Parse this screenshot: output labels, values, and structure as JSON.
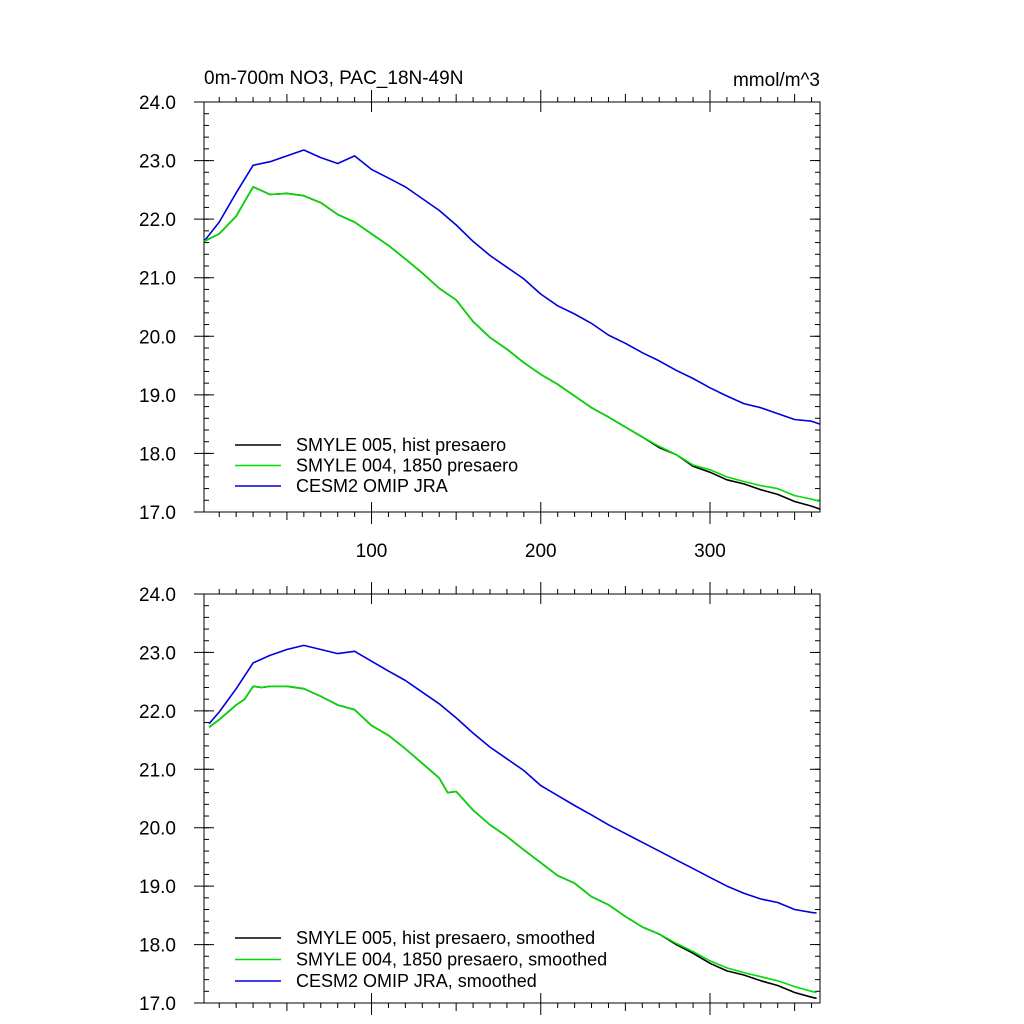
{
  "chart_data": [
    {
      "type": "line",
      "title": "0m-700m NO3, PAC_18N-49N",
      "units": "mmol/m^3",
      "xlim": [
        1,
        365
      ],
      "ylim": [
        17.0,
        24.0
      ],
      "xticks": [
        100,
        200,
        300
      ],
      "xtick_labels": [
        "100",
        "200",
        "300"
      ],
      "yticks": [
        17.0,
        18.0,
        19.0,
        20.0,
        21.0,
        22.0,
        23.0,
        24.0
      ],
      "ytick_labels": [
        "17.0",
        "18.0",
        "19.0",
        "20.0",
        "21.0",
        "22.0",
        "23.0",
        "24.0"
      ],
      "legend_position": "bottom-left",
      "series": [
        {
          "name": "SMYLE 005, hist presaero",
          "color": "#000000",
          "points": [
            [
              1,
              21.62
            ],
            [
              10,
              21.75
            ],
            [
              20,
              22.05
            ],
            [
              30,
              22.55
            ],
            [
              40,
              22.42
            ],
            [
              50,
              22.44
            ],
            [
              60,
              22.4
            ],
            [
              70,
              22.28
            ],
            [
              80,
              22.08
            ],
            [
              90,
              21.95
            ],
            [
              100,
              21.75
            ],
            [
              110,
              21.55
            ],
            [
              120,
              21.32
            ],
            [
              130,
              21.08
            ],
            [
              140,
              20.82
            ],
            [
              150,
              20.62
            ],
            [
              160,
              20.25
            ],
            [
              170,
              19.98
            ],
            [
              180,
              19.78
            ],
            [
              190,
              19.55
            ],
            [
              200,
              19.35
            ],
            [
              210,
              19.18
            ],
            [
              220,
              18.98
            ],
            [
              230,
              18.78
            ],
            [
              240,
              18.62
            ],
            [
              250,
              18.45
            ],
            [
              260,
              18.28
            ],
            [
              270,
              18.1
            ],
            [
              280,
              17.98
            ],
            [
              290,
              17.78
            ],
            [
              300,
              17.68
            ],
            [
              310,
              17.55
            ],
            [
              320,
              17.48
            ],
            [
              330,
              17.38
            ],
            [
              340,
              17.3
            ],
            [
              350,
              17.18
            ],
            [
              360,
              17.1
            ],
            [
              365,
              17.05
            ]
          ]
        },
        {
          "name": "SMYLE 004, 1850 presaero",
          "color": "#00dd00",
          "points": [
            [
              1,
              21.62
            ],
            [
              10,
              21.75
            ],
            [
              20,
              22.05
            ],
            [
              30,
              22.55
            ],
            [
              40,
              22.42
            ],
            [
              50,
              22.44
            ],
            [
              60,
              22.4
            ],
            [
              70,
              22.28
            ],
            [
              80,
              22.08
            ],
            [
              90,
              21.95
            ],
            [
              100,
              21.75
            ],
            [
              110,
              21.55
            ],
            [
              120,
              21.32
            ],
            [
              130,
              21.08
            ],
            [
              140,
              20.82
            ],
            [
              150,
              20.62
            ],
            [
              160,
              20.25
            ],
            [
              170,
              19.98
            ],
            [
              180,
              19.78
            ],
            [
              190,
              19.55
            ],
            [
              200,
              19.35
            ],
            [
              210,
              19.18
            ],
            [
              220,
              18.98
            ],
            [
              230,
              18.78
            ],
            [
              240,
              18.62
            ],
            [
              250,
              18.45
            ],
            [
              260,
              18.28
            ],
            [
              270,
              18.12
            ],
            [
              280,
              17.98
            ],
            [
              290,
              17.8
            ],
            [
              300,
              17.72
            ],
            [
              310,
              17.6
            ],
            [
              320,
              17.52
            ],
            [
              330,
              17.45
            ],
            [
              340,
              17.4
            ],
            [
              350,
              17.28
            ],
            [
              360,
              17.22
            ],
            [
              365,
              17.18
            ]
          ]
        },
        {
          "name": "CESM2 OMIP JRA",
          "color": "#0000dd",
          "points": [
            [
              1,
              21.62
            ],
            [
              10,
              21.95
            ],
            [
              20,
              22.45
            ],
            [
              30,
              22.92
            ],
            [
              40,
              22.98
            ],
            [
              50,
              23.08
            ],
            [
              60,
              23.18
            ],
            [
              70,
              23.05
            ],
            [
              80,
              22.95
            ],
            [
              90,
              23.08
            ],
            [
              100,
              22.85
            ],
            [
              110,
              22.7
            ],
            [
              120,
              22.55
            ],
            [
              130,
              22.35
            ],
            [
              140,
              22.15
            ],
            [
              150,
              21.9
            ],
            [
              160,
              21.62
            ],
            [
              170,
              21.38
            ],
            [
              180,
              21.18
            ],
            [
              190,
              20.98
            ],
            [
              200,
              20.72
            ],
            [
              210,
              20.52
            ],
            [
              220,
              20.38
            ],
            [
              230,
              20.22
            ],
            [
              240,
              20.02
            ],
            [
              250,
              19.88
            ],
            [
              260,
              19.72
            ],
            [
              270,
              19.58
            ],
            [
              280,
              19.42
            ],
            [
              290,
              19.28
            ],
            [
              300,
              19.12
            ],
            [
              310,
              18.98
            ],
            [
              320,
              18.85
            ],
            [
              330,
              18.78
            ],
            [
              340,
              18.68
            ],
            [
              350,
              18.58
            ],
            [
              360,
              18.55
            ],
            [
              365,
              18.5
            ]
          ]
        }
      ]
    },
    {
      "type": "line",
      "xlim": [
        1,
        365
      ],
      "ylim": [
        17.0,
        24.0
      ],
      "xticks": [
        100,
        200,
        300
      ],
      "yticks": [
        17.0,
        18.0,
        19.0,
        20.0,
        21.0,
        22.0,
        23.0,
        24.0
      ],
      "ytick_labels": [
        "17.0",
        "18.0",
        "19.0",
        "20.0",
        "21.0",
        "22.0",
        "23.0",
        "24.0"
      ],
      "legend_position": "bottom-left",
      "series": [
        {
          "name": "SMYLE 005, hist presaero, smoothed",
          "color": "#000000",
          "points": [
            [
              4,
              21.72
            ],
            [
              10,
              21.85
            ],
            [
              20,
              22.1
            ],
            [
              25,
              22.2
            ],
            [
              30,
              22.42
            ],
            [
              35,
              22.4
            ],
            [
              40,
              22.42
            ],
            [
              50,
              22.42
            ],
            [
              60,
              22.38
            ],
            [
              70,
              22.25
            ],
            [
              80,
              22.1
            ],
            [
              90,
              22.02
            ],
            [
              100,
              21.75
            ],
            [
              110,
              21.58
            ],
            [
              120,
              21.35
            ],
            [
              130,
              21.1
            ],
            [
              140,
              20.85
            ],
            [
              145,
              20.6
            ],
            [
              150,
              20.62
            ],
            [
              160,
              20.3
            ],
            [
              170,
              20.05
            ],
            [
              180,
              19.85
            ],
            [
              190,
              19.62
            ],
            [
              200,
              19.4
            ],
            [
              210,
              19.18
            ],
            [
              220,
              19.05
            ],
            [
              230,
              18.82
            ],
            [
              240,
              18.68
            ],
            [
              250,
              18.48
            ],
            [
              260,
              18.3
            ],
            [
              270,
              18.18
            ],
            [
              280,
              18.0
            ],
            [
              290,
              17.85
            ],
            [
              300,
              17.68
            ],
            [
              310,
              17.55
            ],
            [
              320,
              17.48
            ],
            [
              330,
              17.38
            ],
            [
              340,
              17.3
            ],
            [
              350,
              17.18
            ],
            [
              360,
              17.1
            ],
            [
              363,
              17.08
            ]
          ]
        },
        {
          "name": "SMYLE 004, 1850 presaero, smoothed",
          "color": "#00dd00",
          "points": [
            [
              4,
              21.72
            ],
            [
              10,
              21.85
            ],
            [
              20,
              22.1
            ],
            [
              25,
              22.2
            ],
            [
              30,
              22.42
            ],
            [
              35,
              22.4
            ],
            [
              40,
              22.42
            ],
            [
              50,
              22.42
            ],
            [
              60,
              22.38
            ],
            [
              70,
              22.25
            ],
            [
              80,
              22.1
            ],
            [
              90,
              22.02
            ],
            [
              100,
              21.75
            ],
            [
              110,
              21.58
            ],
            [
              120,
              21.35
            ],
            [
              130,
              21.1
            ],
            [
              140,
              20.85
            ],
            [
              145,
              20.6
            ],
            [
              150,
              20.62
            ],
            [
              160,
              20.3
            ],
            [
              170,
              20.05
            ],
            [
              180,
              19.85
            ],
            [
              190,
              19.62
            ],
            [
              200,
              19.4
            ],
            [
              210,
              19.18
            ],
            [
              220,
              19.05
            ],
            [
              230,
              18.82
            ],
            [
              240,
              18.68
            ],
            [
              250,
              18.48
            ],
            [
              260,
              18.3
            ],
            [
              270,
              18.18
            ],
            [
              280,
              18.02
            ],
            [
              290,
              17.88
            ],
            [
              300,
              17.72
            ],
            [
              310,
              17.6
            ],
            [
              320,
              17.52
            ],
            [
              330,
              17.45
            ],
            [
              340,
              17.38
            ],
            [
              350,
              17.28
            ],
            [
              360,
              17.2
            ],
            [
              363,
              17.18
            ]
          ]
        },
        {
          "name": "CESM2 OMIP JRA, smoothed",
          "color": "#0000dd",
          "points": [
            [
              4,
              21.78
            ],
            [
              10,
              21.98
            ],
            [
              20,
              22.38
            ],
            [
              30,
              22.82
            ],
            [
              40,
              22.95
            ],
            [
              50,
              23.05
            ],
            [
              60,
              23.12
            ],
            [
              70,
              23.05
            ],
            [
              80,
              22.98
            ],
            [
              90,
              23.02
            ],
            [
              100,
              22.85
            ],
            [
              110,
              22.68
            ],
            [
              120,
              22.52
            ],
            [
              130,
              22.32
            ],
            [
              140,
              22.12
            ],
            [
              150,
              21.88
            ],
            [
              160,
              21.62
            ],
            [
              170,
              21.38
            ],
            [
              180,
              21.18
            ],
            [
              190,
              20.98
            ],
            [
              200,
              20.72
            ],
            [
              210,
              20.55
            ],
            [
              220,
              20.38
            ],
            [
              230,
              20.22
            ],
            [
              240,
              20.05
            ],
            [
              250,
              19.9
            ],
            [
              260,
              19.75
            ],
            [
              270,
              19.6
            ],
            [
              280,
              19.45
            ],
            [
              290,
              19.3
            ],
            [
              300,
              19.15
            ],
            [
              310,
              19.0
            ],
            [
              320,
              18.88
            ],
            [
              330,
              18.78
            ],
            [
              340,
              18.72
            ],
            [
              350,
              18.6
            ],
            [
              360,
              18.55
            ],
            [
              363,
              18.54
            ]
          ]
        }
      ]
    }
  ]
}
